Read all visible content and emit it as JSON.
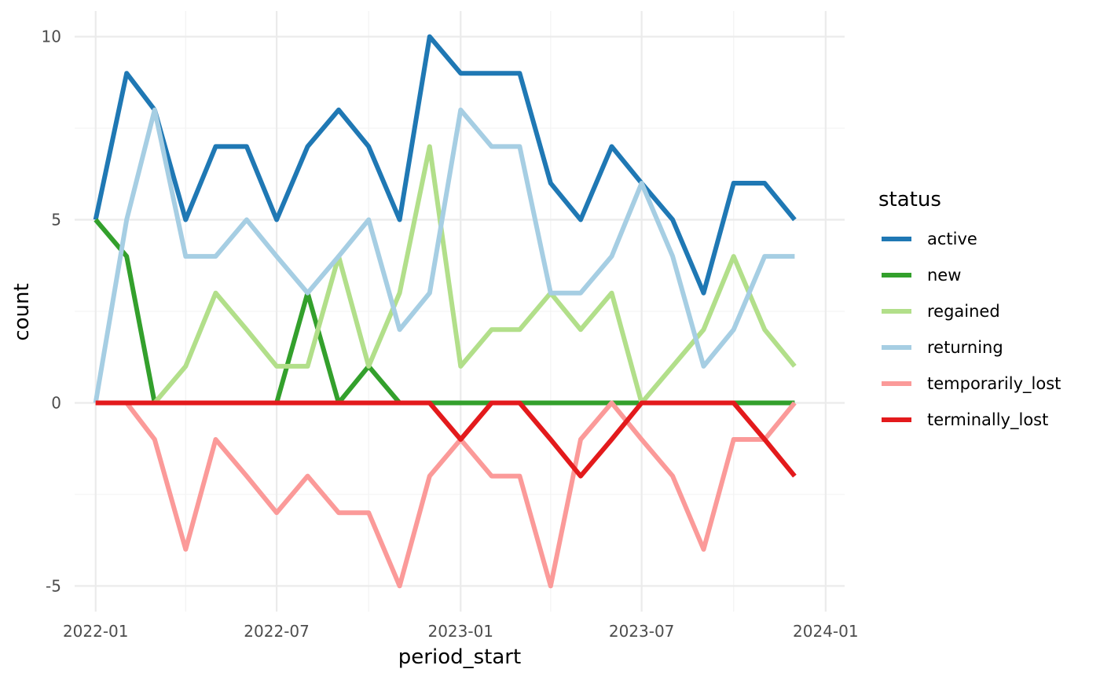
{
  "chart_data": {
    "type": "line",
    "xlabel": "period_start",
    "ylabel": "count",
    "x_ticks": [
      "2022-01",
      "2022-07",
      "2023-01",
      "2023-07",
      "2024-01"
    ],
    "y_ticks": [
      "-5",
      "0",
      "5",
      "10"
    ],
    "ylim": [
      -5.7,
      10.7
    ],
    "xlim": [
      "2021-12-11",
      "2024-01-20"
    ],
    "x": [
      "2022-01-01",
      "2022-02-01",
      "2022-03-01",
      "2022-04-01",
      "2022-05-01",
      "2022-06-01",
      "2022-07-01",
      "2022-08-01",
      "2022-09-01",
      "2022-10-01",
      "2022-11-01",
      "2022-12-01",
      "2023-01-01",
      "2023-02-01",
      "2023-03-01",
      "2023-04-01",
      "2023-05-01",
      "2023-06-01",
      "2023-07-01",
      "2023-08-01",
      "2023-09-01",
      "2023-10-01",
      "2023-11-01",
      "2023-12-01"
    ],
    "legend": {
      "title": "status",
      "position": "right"
    },
    "grid": true,
    "series": [
      {
        "name": "active",
        "color": "#1F78B4",
        "values": [
          5,
          9,
          8,
          5,
          7,
          7,
          5,
          7,
          8,
          7,
          5,
          10,
          9,
          9,
          9,
          6,
          5,
          7,
          6,
          5,
          3,
          6,
          6,
          5
        ]
      },
      {
        "name": "new",
        "color": "#33A02C",
        "values": [
          5,
          4,
          0,
          0,
          0,
          0,
          0,
          3,
          0,
          1,
          0,
          0,
          0,
          0,
          0,
          0,
          0,
          0,
          0,
          0,
          0,
          0,
          0,
          0
        ]
      },
      {
        "name": "regained",
        "color": "#B2DF8A",
        "values": [
          0,
          0,
          0,
          1,
          3,
          2,
          1,
          1,
          4,
          1,
          3,
          7,
          1,
          2,
          2,
          3,
          2,
          3,
          0,
          1,
          2,
          4,
          2,
          1
        ]
      },
      {
        "name": "returning",
        "color": "#A6CEE3",
        "values": [
          0,
          5,
          8,
          4,
          4,
          5,
          4,
          3,
          4,
          5,
          2,
          3,
          8,
          7,
          7,
          3,
          3,
          4,
          6,
          4,
          1,
          2,
          4,
          4
        ]
      },
      {
        "name": "temporarily_lost",
        "color": "#FB9A99",
        "values": [
          0,
          0,
          -1,
          -4,
          -1,
          -2,
          -3,
          -2,
          -3,
          -3,
          -5,
          -2,
          -1,
          -2,
          -2,
          -5,
          -1,
          0,
          -1,
          -2,
          -4,
          -1,
          -1,
          0
        ]
      },
      {
        "name": "terminally_lost",
        "color": "#E31A1C",
        "values": [
          0,
          0,
          0,
          0,
          0,
          0,
          0,
          0,
          0,
          0,
          0,
          0,
          -1,
          0,
          0,
          -1,
          -2,
          -1,
          0,
          0,
          0,
          0,
          -1,
          -2
        ]
      }
    ]
  }
}
